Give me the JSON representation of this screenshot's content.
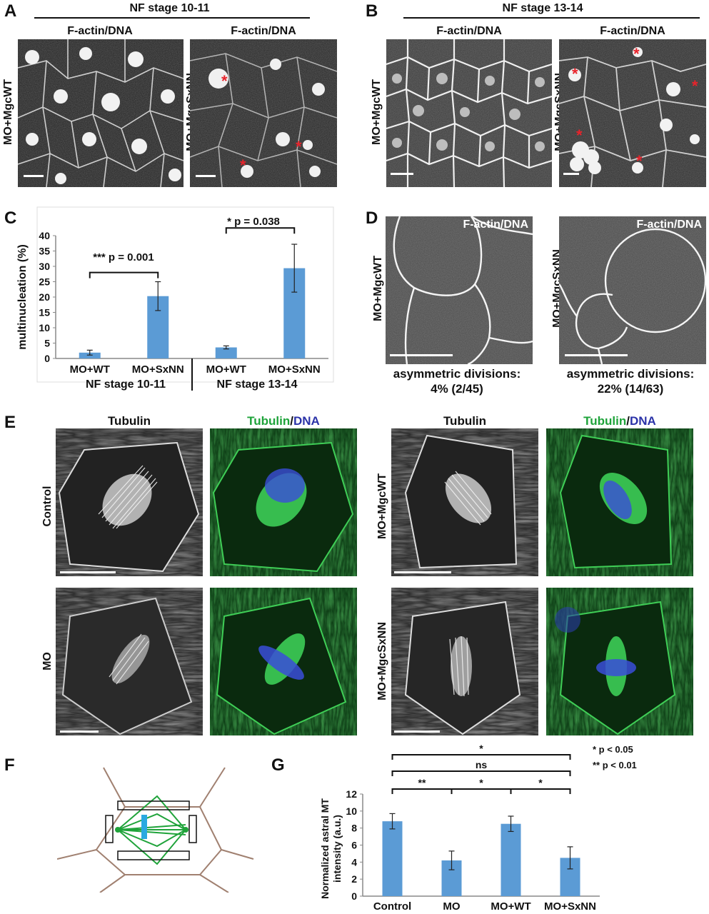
{
  "panel_letters": {
    "a": "A",
    "b": "B",
    "c": "C",
    "d": "D",
    "e": "E",
    "f": "F",
    "g": "G"
  },
  "panel_a": {
    "header": "NF stage 10-11",
    "image_title": "F-actin/DNA",
    "row1_label": "MO+MgcWT",
    "row2_label": "MO+MgcSxNN",
    "star": "*"
  },
  "panel_b": {
    "header": "NF stage 13-14",
    "image_title": "F-actin/DNA",
    "row1_label": "MO+MgcWT",
    "row2_label": "MO+MgcSxNN",
    "star": "*"
  },
  "panel_c": {
    "sig1": "*** p = 0.001",
    "sig2": "* p = 0.038",
    "group1": "NF stage 10-11",
    "group2": "NF stage 13-14"
  },
  "panel_d": {
    "image_title": "F-actin/DNA",
    "label1": "MO+MgcWT",
    "label2": "MO+MgcSxNN",
    "caption1_line1": "asymmetric divisions:",
    "caption1_line2": "4% (2/45)",
    "caption2_line1": "asymmetric divisions:",
    "caption2_line2": "22% (14/63)"
  },
  "panel_e": {
    "col_tubulin": "Tubulin",
    "col_merge_tubulin": "Tubulin",
    "col_merge_slash": "/",
    "col_merge_dna": "DNA",
    "row_control": "Control",
    "row_mo": "MO",
    "row_mo_wt": "MO+MgcWT",
    "row_mo_sxnn": "MO+MgcSxNN",
    "colors": {
      "tubulin_green": "#1ea33a",
      "dna_blue": "#2b33a8"
    }
  },
  "panel_g": {
    "legend1": "* p < 0.05",
    "legend2": "** p < 0.01",
    "brackets": [
      "*",
      "ns",
      "**",
      "*",
      "*"
    ]
  },
  "chart_data": [
    {
      "type": "bar",
      "categories": [
        "MO+WT",
        "MO+SxNN",
        "MO+WT",
        "MO+SxNN"
      ],
      "values": [
        1.9,
        20.3,
        3.6,
        29.4
      ],
      "errors": [
        0.8,
        4.7,
        0.5,
        7.8
      ],
      "ylabel": "multinucleation (%)",
      "xlabel": "",
      "ylim": [
        0,
        40
      ],
      "yticks": [
        0,
        5,
        10,
        15,
        20,
        25,
        30,
        35,
        40
      ],
      "bar_color": "#5b9bd5",
      "groups": [
        "NF stage 10-11",
        "NF stage 13-14"
      ]
    },
    {
      "type": "bar",
      "categories": [
        "Control",
        "MO",
        "MO+WT",
        "MO+SxNN"
      ],
      "values": [
        8.8,
        4.2,
        8.5,
        4.5
      ],
      "errors": [
        0.9,
        1.1,
        0.9,
        1.3
      ],
      "ylabel": "Normalized astral MT intensity (a.u.)",
      "xlabel": "",
      "ylim": [
        0,
        12
      ],
      "yticks": [
        0,
        2,
        4,
        6,
        8,
        10,
        12
      ],
      "bar_color": "#5b9bd5"
    }
  ]
}
